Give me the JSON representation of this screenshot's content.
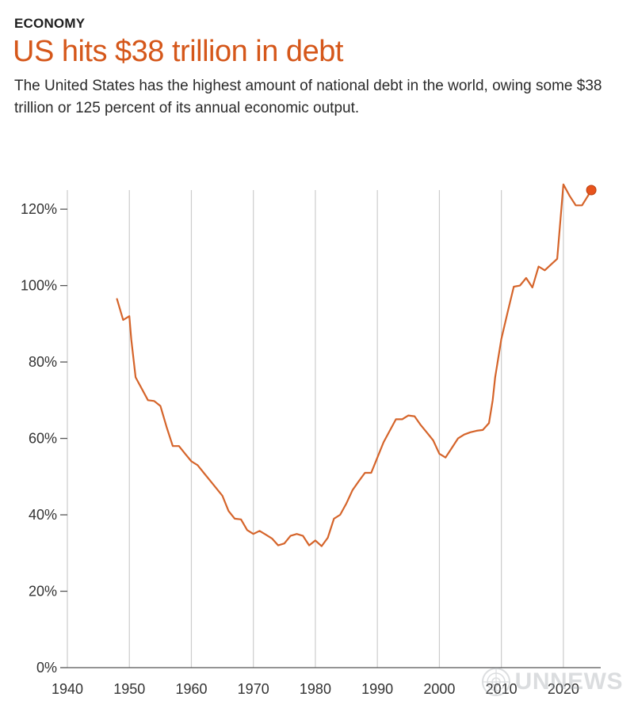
{
  "header": {
    "kicker": "ECONOMY",
    "title": "US hits $38 trillion in debt",
    "subtitle": "The United States has the highest amount of national debt in the world, owing some $38 trillion or 125 percent of its annual economic output."
  },
  "watermark": {
    "text": "UNNEWS",
    "icon": "un-emblem-icon"
  },
  "colors": {
    "accent": "#d5571a",
    "line": "#d5642a",
    "marker": "#e8531c",
    "grid": "#cccccc"
  },
  "chart_data": {
    "type": "line",
    "title": "",
    "xlabel": "",
    "ylabel": "",
    "xlim": [
      1940,
      2025
    ],
    "ylim": [
      0,
      125
    ],
    "x_ticks": [
      1940,
      1950,
      1960,
      1970,
      1980,
      1990,
      2000,
      2010,
      2020
    ],
    "x_tick_labels": [
      "1940",
      "1950",
      "1960",
      "1970",
      "1980",
      "1990",
      "2000",
      "2010",
      "2020"
    ],
    "y_ticks": [
      0,
      20,
      40,
      60,
      80,
      100,
      120
    ],
    "y_tick_labels": [
      "0%",
      "20%",
      "40%",
      "60%",
      "80%",
      "100%",
      "120%"
    ],
    "grid": "vertical",
    "series": [
      {
        "x": [
          1948,
          1949,
          1950,
          1950.3,
          1951,
          1952,
          1953,
          1954,
          1955,
          1956,
          1957,
          1958,
          1959,
          1960,
          1961,
          1962,
          1963,
          1964,
          1965,
          1966,
          1967,
          1968,
          1969,
          1970,
          1971,
          1972,
          1973,
          1974,
          1975,
          1976,
          1977,
          1978,
          1979,
          1980,
          1981,
          1982,
          1983,
          1984,
          1985,
          1986,
          1987,
          1988,
          1989,
          1990,
          1991,
          1992,
          1993,
          1994,
          1995,
          1996,
          1997,
          1998,
          1999,
          2000,
          2001,
          2002,
          2003,
          2004,
          2005,
          2006,
          2007,
          2008,
          2008.6,
          2009,
          2010,
          2011,
          2012,
          2013,
          2014,
          2015,
          2016,
          2017,
          2018,
          2019,
          2020,
          2021,
          2022,
          2023,
          2024
        ],
        "values": [
          96.5,
          91,
          92,
          86,
          76,
          73,
          70,
          69.8,
          68.5,
          63,
          58,
          58,
          56,
          54,
          53,
          51,
          49,
          47,
          45,
          41,
          39,
          38.8,
          36,
          35,
          35.8,
          34.8,
          33.8,
          32,
          32.5,
          34.5,
          35,
          34.5,
          32,
          33.3,
          31.8,
          34,
          39,
          40,
          43,
          46.5,
          48.8,
          51,
          51,
          55,
          59,
          62,
          65,
          65,
          66,
          65.8,
          63.5,
          61.5,
          59.5,
          56,
          55,
          57.5,
          60,
          61,
          61.6,
          62,
          62.2,
          64,
          70,
          76,
          86,
          93,
          99.7,
          100,
          102,
          99.5,
          105,
          104,
          105.5,
          107,
          126.5,
          123.5,
          121,
          121,
          123.6
        ]
      }
    ],
    "highlight": {
      "x": 2024.5,
      "value": 125
    }
  }
}
